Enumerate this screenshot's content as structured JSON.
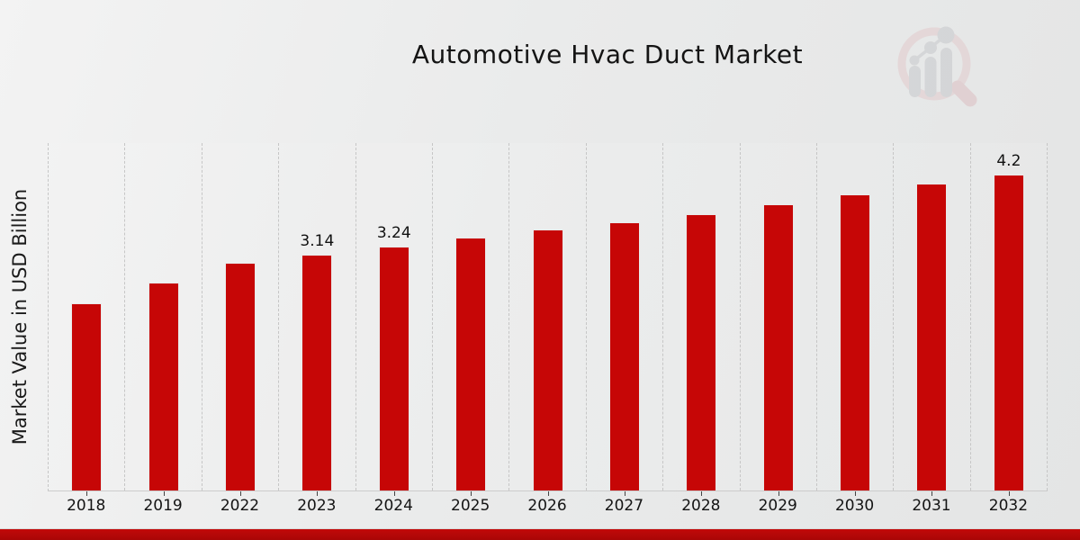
{
  "chart_data": {
    "type": "bar",
    "title": "Automotive Hvac Duct Market",
    "xlabel": "",
    "ylabel": "Market Value in USD Billion",
    "categories": [
      "2018",
      "2019",
      "2022",
      "2023",
      "2024",
      "2025",
      "2026",
      "2027",
      "2028",
      "2029",
      "2030",
      "2031",
      "2032"
    ],
    "values": [
      2.49,
      2.76,
      3.03,
      3.14,
      3.24,
      3.36,
      3.47,
      3.57,
      3.68,
      3.81,
      3.94,
      4.08,
      4.2
    ],
    "data_labels": [
      "",
      "",
      "",
      "3.14",
      "3.24",
      "",
      "",
      "",
      "",
      "",
      "",
      "",
      "4.2"
    ],
    "ylim": [
      0,
      4.62
    ],
    "grid": "vertical-dashed",
    "legend": "none",
    "bar_color": "#c60606"
  },
  "colors": {
    "bar": "#c60606",
    "bottom_strip": "#b00808",
    "background_light": "#f3f3f3",
    "background_dark": "#e4e5e5",
    "gridline": "#c6c6c6",
    "text": "#141414"
  },
  "logo": {
    "icon": "magnifier-trend-chart-logo"
  }
}
